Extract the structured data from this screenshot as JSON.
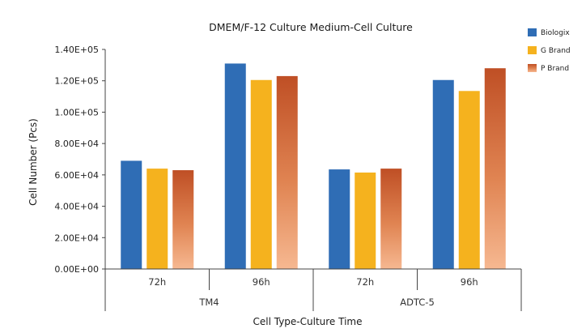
{
  "chart_data": {
    "type": "bar",
    "title": "DMEM/F-12 Culture Medium-Cell Culture",
    "xlabel": "Cell Type-Culture Time",
    "ylabel": "Cell Number (Pcs)",
    "ylim": [
      0,
      140000
    ],
    "yticks": [
      0,
      20000,
      40000,
      60000,
      80000,
      100000,
      120000,
      140000
    ],
    "ytick_labels": [
      "0.00E+00",
      "2.00E+04",
      "4.00E+04",
      "6.00E+04",
      "8.00E+04",
      "1.00E+05",
      "1.20E+05",
      "1.40E+05"
    ],
    "groups": [
      {
        "label": "TM4",
        "categories": [
          "72h",
          "96h"
        ]
      },
      {
        "label": "ADTC-5",
        "categories": [
          "72h",
          "96h"
        ]
      }
    ],
    "categories": [
      "72h",
      "96h",
      "72h",
      "96h"
    ],
    "series": [
      {
        "name": "Biologix",
        "color": "#2f6db5",
        "values": [
          69000,
          131000,
          63500,
          120500
        ]
      },
      {
        "name": "G Brand",
        "color": "#f5b21e",
        "values": [
          64000,
          120500,
          61500,
          113500
        ]
      },
      {
        "name": "P Brand",
        "color": "#c8552a",
        "values": [
          63000,
          123000,
          64000,
          128000
        ]
      }
    ],
    "legend_position": "top-right",
    "grid": false
  }
}
